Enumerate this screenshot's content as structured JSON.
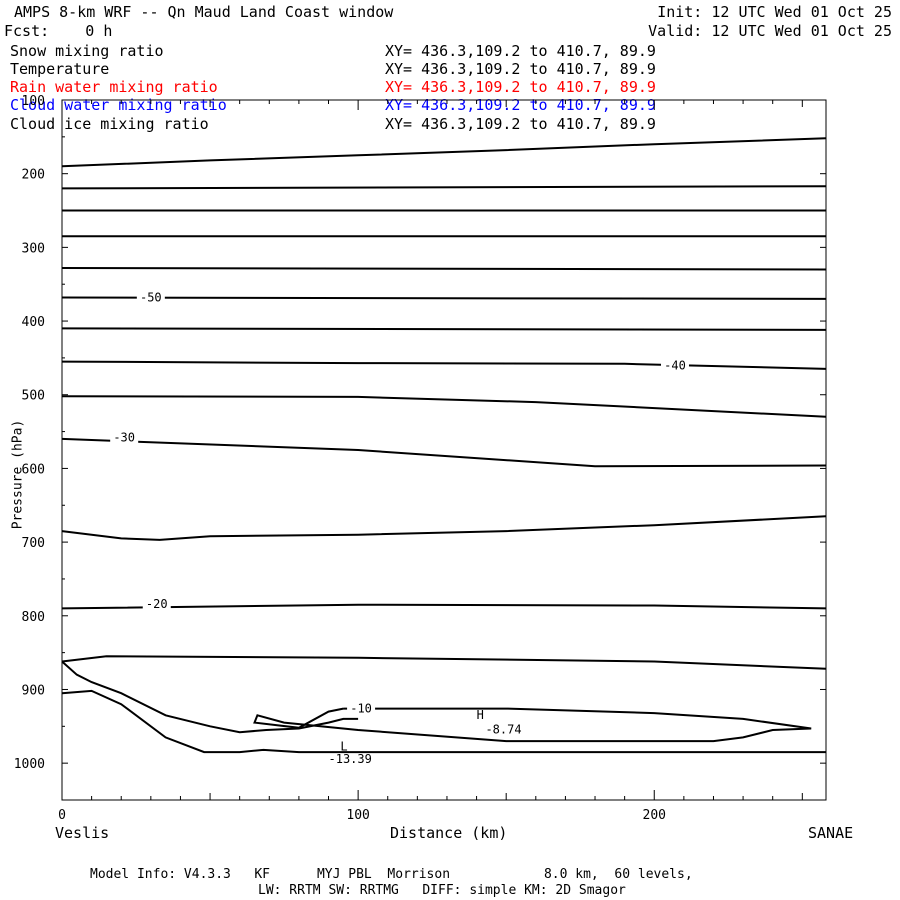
{
  "header": {
    "title": "AMPS 8-km WRF -- Qn Maud Land Coast window",
    "init": "Init: 12 UTC Wed 01 Oct 25",
    "fcst": "Fcst:    0 h",
    "valid": "Valid: 12 UTC Wed 01 Oct 25"
  },
  "fields": [
    {
      "name": "Snow mixing ratio",
      "xy": "XY= 436.3,109.2 to 410.7, 89.9",
      "color": "#000000"
    },
    {
      "name": "Temperature",
      "xy": "XY= 436.3,109.2 to 410.7, 89.9",
      "color": "#000000"
    },
    {
      "name": "Rain water mixing ratio",
      "xy": "XY= 436.3,109.2 to 410.7, 89.9",
      "color": "#ff0000"
    },
    {
      "name": "Cloud water mixing ratio",
      "xy": "XY= 436.3,109.2 to 410.7, 89.9",
      "color": "#0000ff"
    },
    {
      "name": "Cloud ice mixing ratio",
      "xy": "XY= 436.3,109.2 to 410.7, 89.9",
      "color": "#000000"
    }
  ],
  "footer": {
    "line1": "Model Info: V4.3.3   KF      MYJ PBL  Morrison            8.0 km,  60 levels,",
    "line2": "LW: RRTM SW: RRTMG   DIFF: simple KM: 2D Smagor"
  },
  "chart_data": {
    "type": "line",
    "xlabel": "Distance (km)",
    "ylabel": "Pressure (hPa)",
    "xlim": [
      0,
      258
    ],
    "ylim": [
      1050,
      100
    ],
    "xticks": [
      0,
      100,
      200
    ],
    "yticks": [
      100,
      200,
      300,
      400,
      500,
      600,
      700,
      800,
      900,
      1000
    ],
    "x_endpoint_labels": {
      "left": "Veslis",
      "right": "SANAE"
    },
    "series": [
      {
        "points": [
          [
            0,
            190
          ],
          [
            50,
            182
          ],
          [
            100,
            175
          ],
          [
            150,
            168
          ],
          [
            200,
            160
          ],
          [
            258,
            152
          ]
        ]
      },
      {
        "points": [
          [
            0,
            220
          ],
          [
            258,
            217
          ]
        ]
      },
      {
        "points": [
          [
            0,
            250
          ],
          [
            258,
            250
          ]
        ]
      },
      {
        "points": [
          [
            0,
            285
          ],
          [
            258,
            285
          ]
        ]
      },
      {
        "points": [
          [
            0,
            328
          ],
          [
            258,
            330
          ]
        ]
      },
      {
        "points": [
          [
            0,
            368
          ],
          [
            258,
            370
          ]
        ],
        "label": "-50",
        "label_at": [
          30,
          368
        ]
      },
      {
        "points": [
          [
            0,
            410
          ],
          [
            258,
            412
          ]
        ]
      },
      {
        "points": [
          [
            0,
            455
          ],
          [
            100,
            457
          ],
          [
            190,
            458
          ],
          [
            258,
            465
          ]
        ],
        "label": "-40",
        "label_at": [
          207,
          460
        ]
      },
      {
        "points": [
          [
            0,
            502
          ],
          [
            100,
            503
          ],
          [
            160,
            510
          ],
          [
            258,
            530
          ]
        ]
      },
      {
        "points": [
          [
            0,
            560
          ],
          [
            100,
            575
          ],
          [
            180,
            597
          ],
          [
            258,
            596
          ]
        ],
        "label": "-30",
        "label_at": [
          21,
          558
        ]
      },
      {
        "points": [
          [
            0,
            685
          ],
          [
            20,
            695
          ],
          [
            33,
            697
          ],
          [
            50,
            692
          ],
          [
            100,
            690
          ],
          [
            150,
            685
          ],
          [
            200,
            677
          ],
          [
            258,
            665
          ]
        ]
      },
      {
        "points": [
          [
            0,
            790
          ],
          [
            100,
            785
          ],
          [
            200,
            786
          ],
          [
            258,
            790
          ]
        ],
        "label": "-20",
        "label_at": [
          32,
          784
        ]
      },
      {
        "points": [
          [
            0,
            862
          ],
          [
            15,
            855
          ],
          [
            100,
            857
          ],
          [
            200,
            862
          ],
          [
            258,
            872
          ]
        ]
      },
      {
        "points": [
          [
            0,
            862
          ],
          [
            5,
            880
          ],
          [
            10,
            890
          ],
          [
            20,
            905
          ],
          [
            35,
            935
          ],
          [
            50,
            950
          ],
          [
            60,
            958
          ],
          [
            69,
            955
          ],
          [
            80,
            953
          ],
          [
            90,
            945
          ],
          [
            95,
            940
          ],
          [
            100,
            940
          ]
        ]
      },
      {
        "points": [
          [
            0,
            905
          ],
          [
            10,
            902
          ],
          [
            20,
            920
          ],
          [
            35,
            965
          ],
          [
            48,
            985
          ],
          [
            60,
            985
          ],
          [
            68,
            982
          ],
          [
            80,
            985
          ],
          [
            100,
            985
          ],
          [
            200,
            985
          ],
          [
            258,
            985
          ]
        ]
      },
      {
        "points": [
          [
            95,
            926
          ],
          [
            150,
            926
          ],
          [
            200,
            932
          ],
          [
            230,
            940
          ],
          [
            253,
            953
          ],
          [
            240,
            955
          ],
          [
            230,
            965
          ],
          [
            220,
            970
          ],
          [
            150,
            970
          ],
          [
            100,
            955
          ],
          [
            75,
            945
          ],
          [
            66,
            935
          ],
          [
            65,
            945
          ],
          [
            80,
            952
          ],
          [
            90,
            930
          ],
          [
            95,
            926
          ]
        ],
        "label": "-10",
        "label_at": [
          101,
          926
        ]
      }
    ],
    "annotations": [
      {
        "text": "H",
        "x": 140,
        "y": 940
      },
      {
        "text": "-8.74",
        "x": 143,
        "y": 960
      },
      {
        "text": "L",
        "x": 94,
        "y": 983
      },
      {
        "text": "-13.39",
        "x": 90,
        "y": 1000
      }
    ]
  }
}
